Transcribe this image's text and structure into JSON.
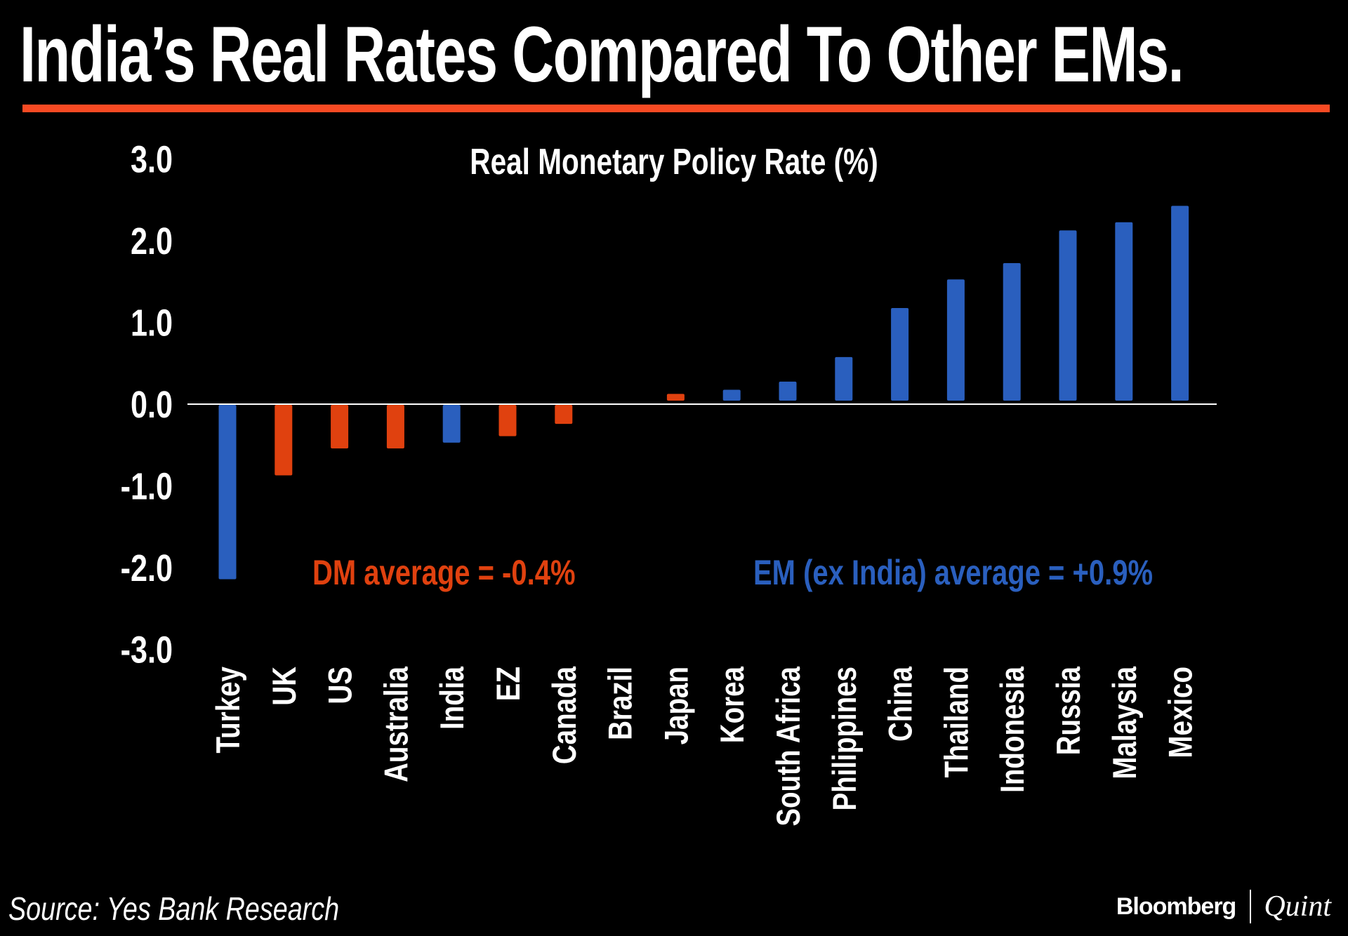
{
  "header": {
    "title": "India’s Real Rates Compared To Other EMs.",
    "accent_color": "#f84a23"
  },
  "footer": {
    "source": "Source: Yes Bank Research",
    "brand_primary": "Bloomberg",
    "brand_secondary": "Quint"
  },
  "chart_data": {
    "type": "bar",
    "title": "Real Monetary Policy Rate (%)",
    "xlabel": "",
    "ylabel": "",
    "ylim": [
      -3.0,
      3.0
    ],
    "yticks": [
      "3.0",
      "2.0",
      "1.0",
      "0.0",
      "-1.0",
      "-2.0",
      "-3.0"
    ],
    "ytick_values": [
      3,
      2,
      1,
      0,
      -1,
      -2,
      -3
    ],
    "grid": false,
    "categories": [
      "Turkey",
      "UK",
      "US",
      "Australia",
      "India",
      "EZ",
      "Canada",
      "Brazil",
      "Japan",
      "Korea",
      "South Africa",
      "Philippines",
      "China",
      "Thailand",
      "Indonesia",
      "Russia",
      "Malaysia",
      "Mexico"
    ],
    "values": [
      -2.15,
      -0.88,
      -0.55,
      -0.55,
      -0.48,
      -0.4,
      -0.25,
      0.0,
      0.1,
      0.15,
      0.25,
      0.55,
      1.15,
      1.5,
      1.7,
      2.1,
      2.2,
      2.4
    ],
    "groups": [
      "EM",
      "DM",
      "DM",
      "DM",
      "EM",
      "DM",
      "DM",
      "EM",
      "DM",
      "EM",
      "EM",
      "EM",
      "EM",
      "EM",
      "EM",
      "EM",
      "EM",
      "EM"
    ],
    "colors": {
      "DM": "#e0410f",
      "EM": "#2a5fbe"
    },
    "annotations": [
      {
        "text": "DM average = -0.4%",
        "group": "DM",
        "color": "#e0410f"
      },
      {
        "text": "EM (ex India) average = +0.9%",
        "group": "EM",
        "color": "#2a5fbe"
      }
    ]
  }
}
